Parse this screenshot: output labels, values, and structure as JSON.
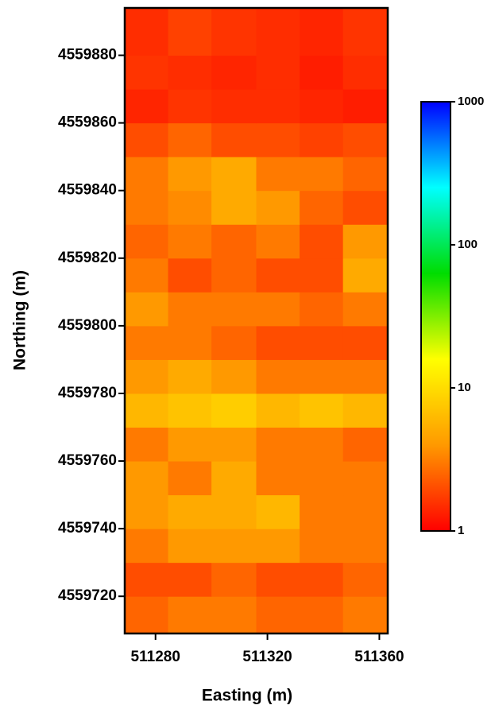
{
  "chart_data": {
    "type": "heatmap",
    "xlabel": "Easting (m)",
    "ylabel": "Northing (m)",
    "xlim": [
      511269,
      511363
    ],
    "ylim": [
      4559709,
      4559894
    ],
    "xticks": [
      511280,
      511320,
      511360
    ],
    "yticks": [
      4559720,
      4559740,
      4559760,
      4559780,
      4559800,
      4559820,
      4559840,
      4559860,
      4559880
    ],
    "x": [
      511277,
      511292,
      511308,
      511324,
      511339,
      511355
    ],
    "y": [
      4559715,
      4559725,
      4559735,
      4559745,
      4559755,
      4559765,
      4559775,
      4559785,
      4559795,
      4559805,
      4559815,
      4559825,
      4559835,
      4559845,
      4559855,
      4559865,
      4559875,
      4559885
    ],
    "z": [
      [
        2.5,
        3,
        3,
        2.5,
        2.5,
        3
      ],
      [
        2,
        2,
        2.5,
        2,
        2,
        2.5
      ],
      [
        3,
        4,
        4,
        4,
        3,
        3
      ],
      [
        4,
        5,
        5,
        6,
        3,
        3
      ],
      [
        4,
        3,
        5,
        3,
        3,
        3
      ],
      [
        3,
        4,
        4,
        3,
        3,
        2.5
      ],
      [
        6,
        7,
        8,
        6,
        7,
        6
      ],
      [
        4,
        5,
        4,
        3,
        3,
        3
      ],
      [
        3,
        3,
        2.5,
        2,
        2,
        2
      ],
      [
        4,
        3,
        3,
        3,
        2.5,
        3
      ],
      [
        3,
        2,
        2.5,
        2,
        2,
        5
      ],
      [
        2.5,
        3,
        2.5,
        3,
        2,
        4
      ],
      [
        3,
        3.5,
        5,
        4,
        2.5,
        2
      ],
      [
        3,
        4,
        5,
        3,
        3,
        2.5
      ],
      [
        2,
        2.5,
        2,
        2,
        1.8,
        2
      ],
      [
        1.4,
        1.6,
        1.5,
        1.5,
        1.4,
        1.3
      ],
      [
        1.6,
        1.5,
        1.4,
        1.5,
        1.3,
        1.5
      ],
      [
        1.5,
        1.8,
        1.6,
        1.5,
        1.4,
        1.6
      ]
    ],
    "colorscale": [
      "#ff0000",
      "#ff9900",
      "#ffff00",
      "#00dd00",
      "#00ffff",
      "#0000ff"
    ],
    "colorbar": {
      "lim": [
        1,
        1000
      ],
      "ticks": [
        1,
        10,
        100,
        1000
      ],
      "log": true
    }
  }
}
